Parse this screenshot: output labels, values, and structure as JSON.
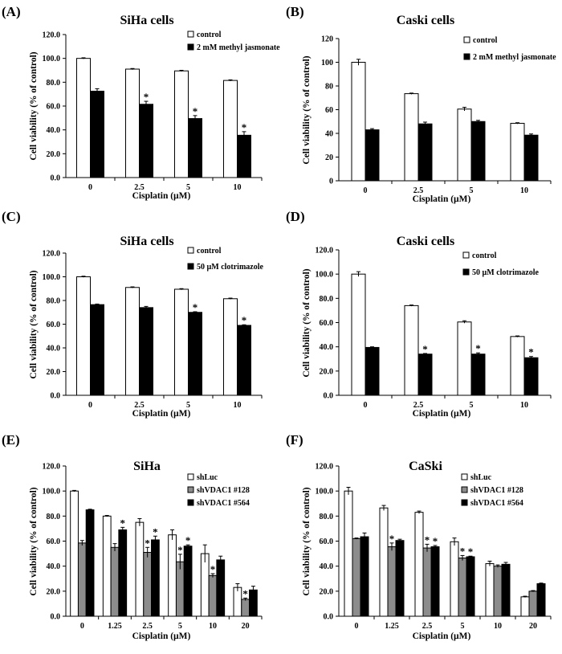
{
  "chart_data": [
    {
      "panel": "(A)",
      "type": "bar",
      "title": "SiHa cells",
      "xlabel": "Cisplatin (µM)",
      "ylabel": "Cell viability (% of control)",
      "categories": [
        "0",
        "2.5",
        "5",
        "10"
      ],
      "ylim": [
        0,
        120
      ],
      "yticks": [
        "0.0",
        "20.0",
        "40.0",
        "60.0",
        "80.0",
        "100.0",
        "120.0"
      ],
      "series": [
        {
          "name": "control",
          "color": "#ffffff",
          "values": [
            100,
            91,
            89.5,
            81.5
          ],
          "errors": [
            0.5,
            0.5,
            0.5,
            0.5
          ],
          "stars": [
            false,
            false,
            false,
            false
          ]
        },
        {
          "name": "2 mM methyl jasmonate",
          "color": "#000000",
          "values": [
            72.5,
            61.5,
            49.5,
            35.5
          ],
          "errors": [
            2,
            2.5,
            2.5,
            3
          ],
          "stars": [
            false,
            true,
            true,
            true
          ]
        }
      ]
    },
    {
      "panel": "(B)",
      "type": "bar",
      "title": "Caski cells",
      "xlabel": "Cisplatin (µM)",
      "ylabel": "Cell viability (% of control)",
      "categories": [
        "0",
        "2.5",
        "5",
        "10"
      ],
      "ylim": [
        0,
        120
      ],
      "yticks": [
        "0",
        "20",
        "40",
        "60",
        "80",
        "100",
        "120"
      ],
      "series": [
        {
          "name": "control",
          "color": "#ffffff",
          "values": [
            100,
            73.5,
            60.5,
            48.5
          ],
          "errors": [
            2.5,
            0.5,
            1.5,
            0.5
          ],
          "stars": [
            false,
            false,
            false,
            false
          ]
        },
        {
          "name": "2 mM methyl jasmonate",
          "color": "#000000",
          "values": [
            43,
            48,
            50,
            38.5
          ],
          "errors": [
            1,
            1.5,
            1,
            1
          ],
          "stars": [
            false,
            false,
            false,
            false
          ]
        }
      ]
    },
    {
      "panel": "(C)",
      "type": "bar",
      "title": "SiHa cells",
      "xlabel": "Cisplatin (µM)",
      "ylabel": "Cell viability (% of control)",
      "categories": [
        "0",
        "2.5",
        "5",
        "10"
      ],
      "ylim": [
        0,
        120
      ],
      "yticks": [
        "0.0",
        "20.0",
        "40.0",
        "60.0",
        "80.0",
        "100.0",
        "120.0"
      ],
      "series": [
        {
          "name": "control",
          "color": "#ffffff",
          "values": [
            100,
            91,
            89.5,
            81.5
          ],
          "errors": [
            0.5,
            0.5,
            0.5,
            0.5
          ],
          "stars": [
            false,
            false,
            false,
            false
          ]
        },
        {
          "name": "50 µM clotrimazole",
          "color": "#000000",
          "values": [
            76.5,
            74,
            70,
            59
          ],
          "errors": [
            0.5,
            1,
            0.5,
            0.5
          ],
          "stars": [
            false,
            false,
            true,
            true
          ]
        }
      ]
    },
    {
      "panel": "(D)",
      "type": "bar",
      "title": "Caski cells",
      "xlabel": "Cisplatin (µM)",
      "ylabel": "Cell viability (% of control)",
      "categories": [
        "0",
        "2.5",
        "5",
        "10"
      ],
      "ylim": [
        0,
        120
      ],
      "yticks": [
        "0.0",
        "20.0",
        "40.0",
        "60.0",
        "80.0",
        "100.0",
        "120.0"
      ],
      "series": [
        {
          "name": "control",
          "color": "#ffffff",
          "values": [
            100,
            74,
            60.5,
            48.5
          ],
          "errors": [
            2,
            0.5,
            1,
            0.5
          ],
          "stars": [
            false,
            false,
            false,
            false
          ]
        },
        {
          "name": "50 µM clotrimazole",
          "color": "#000000",
          "values": [
            39.5,
            34,
            34,
            31
          ],
          "errors": [
            0.5,
            0.5,
            1,
            1
          ],
          "stars": [
            false,
            true,
            true,
            true
          ]
        }
      ]
    },
    {
      "panel": "(E)",
      "type": "bar",
      "title": "SiHa",
      "xlabel": "Cisplatin (µM)",
      "ylabel": "Cell viability (% of control)",
      "categories": [
        "0",
        "1.25",
        "2.5",
        "5",
        "10",
        "20"
      ],
      "ylim": [
        0,
        120
      ],
      "yticks": [
        "0.0",
        "20.0",
        "40.0",
        "60.0",
        "80.0",
        "100.0",
        "120.0"
      ],
      "series": [
        {
          "name": "shLuc",
          "color": "#ffffff",
          "values": [
            100,
            80,
            75,
            65,
            50,
            23
          ],
          "errors": [
            0.5,
            0.5,
            3,
            4,
            7,
            3
          ],
          "stars": [
            false,
            false,
            false,
            false,
            false,
            false
          ]
        },
        {
          "name": "shVDAC1 #128",
          "color": "#8c8c8c",
          "values": [
            58.5,
            55,
            51,
            43.5,
            32.5,
            13.5
          ],
          "errors": [
            2,
            3,
            4,
            6,
            1.5,
            1
          ],
          "stars": [
            false,
            false,
            true,
            true,
            true,
            true
          ]
        },
        {
          "name": "shVDAC1 #564",
          "color": "#000000",
          "values": [
            85,
            69,
            61,
            56,
            45,
            21
          ],
          "errors": [
            0.5,
            2,
            3,
            1,
            3,
            3
          ],
          "stars": [
            false,
            true,
            true,
            true,
            false,
            false
          ]
        }
      ]
    },
    {
      "panel": "(F)",
      "type": "bar",
      "title": "CaSki",
      "xlabel": "Cisplatin (µM)",
      "ylabel": "Cell viability (% of control)",
      "categories": [
        "0",
        "1.25",
        "2.5",
        "5",
        "10",
        "20"
      ],
      "ylim": [
        0,
        120
      ],
      "yticks": [
        "0.0",
        "20.0",
        "40.0",
        "60.0",
        "80.0",
        "100.0",
        "120.0"
      ],
      "series": [
        {
          "name": "shLuc",
          "color": "#ffffff",
          "values": [
            100,
            86.5,
            83,
            59.5,
            42,
            15.5
          ],
          "errors": [
            3,
            2,
            1,
            3,
            2,
            0.5
          ],
          "stars": [
            false,
            false,
            false,
            false,
            false,
            false
          ]
        },
        {
          "name": "shVDAC1 #128",
          "color": "#8c8c8c",
          "values": [
            62,
            55.5,
            54.5,
            46.5,
            40,
            20
          ],
          "errors": [
            0.5,
            3,
            3,
            2,
            1,
            0.5
          ],
          "stars": [
            false,
            true,
            true,
            true,
            false,
            false
          ]
        },
        {
          "name": "shVDAC1 #564",
          "color": "#000000",
          "values": [
            63.5,
            60.5,
            55.5,
            47.5,
            41.5,
            26
          ],
          "errors": [
            3,
            1,
            1,
            0.5,
            1.5,
            0.5
          ],
          "stars": [
            false,
            false,
            true,
            true,
            false,
            false
          ]
        }
      ]
    }
  ]
}
